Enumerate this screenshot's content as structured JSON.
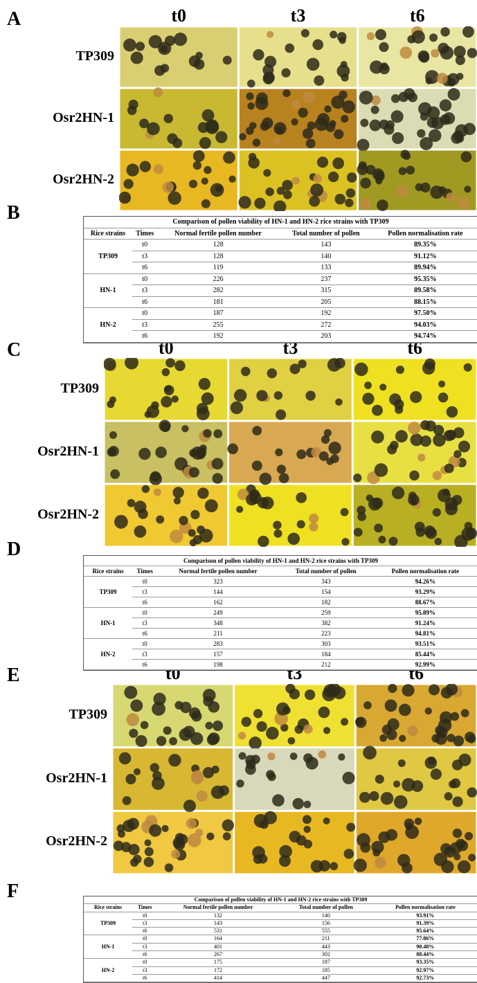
{
  "image_panels": [
    {
      "label": "A",
      "columns": [
        "t0",
        "t3",
        "t6"
      ],
      "rows": [
        "TP309",
        "Osr2HN-1",
        "Osr2HN-2"
      ]
    },
    {
      "label": "C",
      "columns": [
        "t0",
        "t3",
        "t6"
      ],
      "rows": [
        "TP309",
        "Osr2HN-1",
        "Osr2HN-2"
      ]
    },
    {
      "label": "E",
      "columns": [
        "t0",
        "t3",
        "t6"
      ],
      "rows": [
        "TP309",
        "Osr2HN-1",
        "Osr2HN-2"
      ]
    }
  ],
  "table_panels": [
    {
      "label": "B",
      "title": "Comparison of pollen viability of HN-1 and HN-2 rice strains with TP309",
      "header": [
        "Rice strains",
        "Times",
        "Normal fertile pollen number",
        "Total number of pollen",
        "Pollen normalisation rate"
      ],
      "groups": [
        {
          "strain": "TP309",
          "rows": [
            [
              "t0",
              128,
              143,
              "89.35%"
            ],
            [
              "t3",
              128,
              140,
              "91.12%"
            ],
            [
              "t6",
              119,
              133,
              "89.94%"
            ]
          ]
        },
        {
          "strain": "HN-1",
          "rows": [
            [
              "t0",
              226,
              237,
              "95.35%"
            ],
            [
              "t3",
              282,
              315,
              "89.58%"
            ],
            [
              "t6",
              181,
              205,
              "88.15%"
            ]
          ]
        },
        {
          "strain": "HN-2",
          "rows": [
            [
              "t0",
              187,
              192,
              "97.50%"
            ],
            [
              "t3",
              255,
              272,
              "94.03%"
            ],
            [
              "t6",
              192,
              203,
              "94.74%"
            ]
          ]
        }
      ]
    },
    {
      "label": "D",
      "title": "Comparison of pollen viability of HN-1 and HN-2 rice strains with TP309",
      "header": [
        "Rice strains",
        "Times",
        "Normal fertile pollen number",
        "Total number of pollen",
        "Pollen normalisation rate"
      ],
      "groups": [
        {
          "strain": "TP309",
          "rows": [
            [
              "t0",
              323,
              343,
              "94.26%"
            ],
            [
              "t3",
              144,
              154,
              "93.29%"
            ],
            [
              "t6",
              162,
              182,
              "88.67%"
            ]
          ]
        },
        {
          "strain": "HN-1",
          "rows": [
            [
              "t0",
              249,
              259,
              "95.89%"
            ],
            [
              "t3",
              348,
              382,
              "91.24%"
            ],
            [
              "t6",
              211,
              223,
              "94.81%"
            ]
          ]
        },
        {
          "strain": "HN-2",
          "rows": [
            [
              "t0",
              283,
              303,
              "93.51%"
            ],
            [
              "t3",
              157,
              184,
              "85.44%"
            ],
            [
              "t6",
              198,
              212,
              "92.99%"
            ]
          ]
        }
      ]
    },
    {
      "label": "F",
      "title": "Comparison of pollen viability of HN-1 and HN-2 rice strains with TP309",
      "header": [
        "Rice strains",
        "Times",
        "Normal fertile pollen number",
        "Total number of pollen",
        "Pollen normalisation rate"
      ],
      "groups": [
        {
          "strain": "TP309",
          "rows": [
            [
              "t0",
              132,
              140,
              "93.91%"
            ],
            [
              "t3",
              143,
              156,
              "91.39%"
            ],
            [
              "t6",
              531,
              555,
              "95.64%"
            ]
          ]
        },
        {
          "strain": "HN-1",
          "rows": [
            [
              "t0",
              164,
              211,
              "77.86%"
            ],
            [
              "t3",
              401,
              443,
              "90.48%"
            ],
            [
              "t6",
              267,
              302,
              "88.44%"
            ]
          ]
        },
        {
          "strain": "HN-2",
          "rows": [
            [
              "t0",
              175,
              187,
              "93.35%"
            ],
            [
              "t3",
              172,
              185,
              "92.97%"
            ],
            [
              "t6",
              414,
              447,
              "92.73%"
            ]
          ]
        }
      ]
    }
  ]
}
